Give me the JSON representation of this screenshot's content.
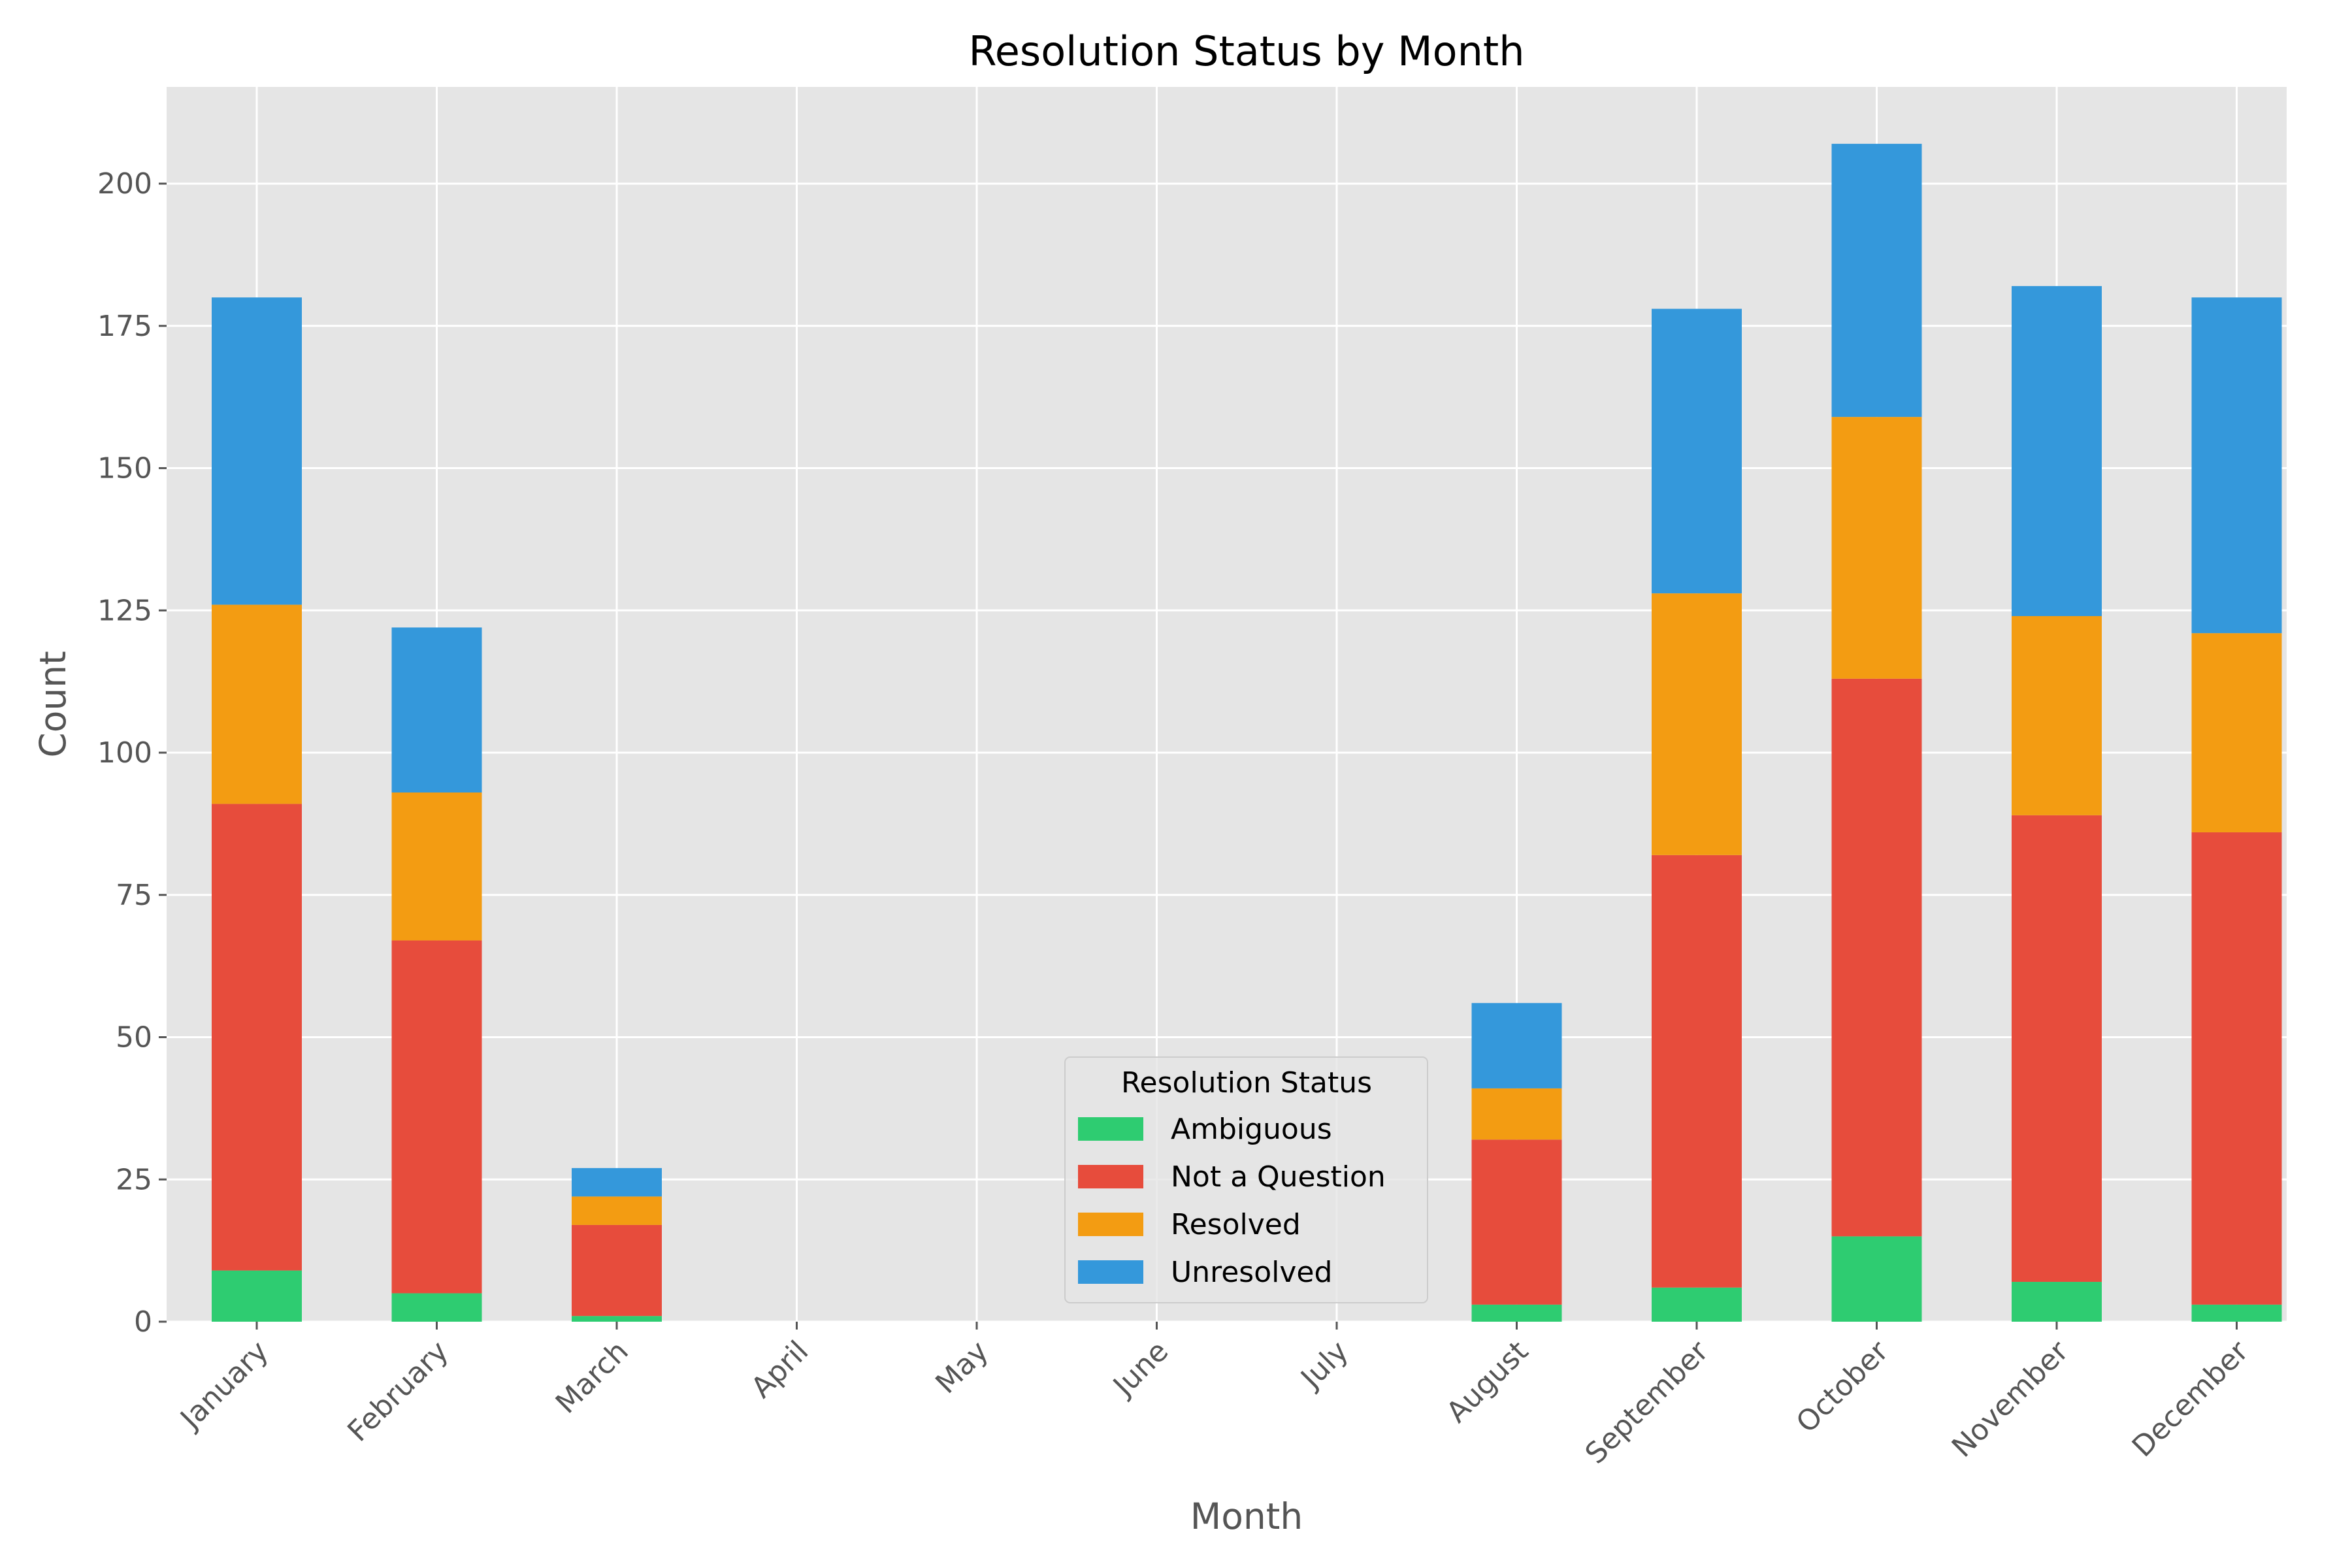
{
  "chart_data": {
    "type": "bar",
    "stacked": true,
    "title": "Resolution Status by Month",
    "xlabel": "Month",
    "ylabel": "Count",
    "ylim": [
      0,
      217
    ],
    "yticks": [
      0,
      25,
      50,
      75,
      100,
      125,
      150,
      175,
      200
    ],
    "grid": true,
    "legend_title": "Resolution Status",
    "legend_position": "bottom-center",
    "categories": [
      "January",
      "February",
      "March",
      "April",
      "May",
      "June",
      "July",
      "August",
      "September",
      "October",
      "November",
      "December"
    ],
    "series": [
      {
        "name": "Ambiguous",
        "color": "#2ecc71",
        "values": [
          9,
          5,
          1,
          0,
          0,
          0,
          0,
          3,
          6,
          15,
          7,
          3
        ]
      },
      {
        "name": "Not a Question",
        "color": "#e74c3c",
        "values": [
          82,
          62,
          16,
          0,
          0,
          0,
          0,
          29,
          76,
          98,
          82,
          83
        ]
      },
      {
        "name": "Resolved",
        "color": "#f39c12",
        "values": [
          35,
          26,
          5,
          0,
          0,
          0,
          0,
          9,
          46,
          46,
          35,
          35
        ]
      },
      {
        "name": "Unresolved",
        "color": "#3498db",
        "values": [
          54,
          29,
          5,
          0,
          0,
          0,
          0,
          15,
          50,
          48,
          58,
          59
        ]
      }
    ]
  }
}
